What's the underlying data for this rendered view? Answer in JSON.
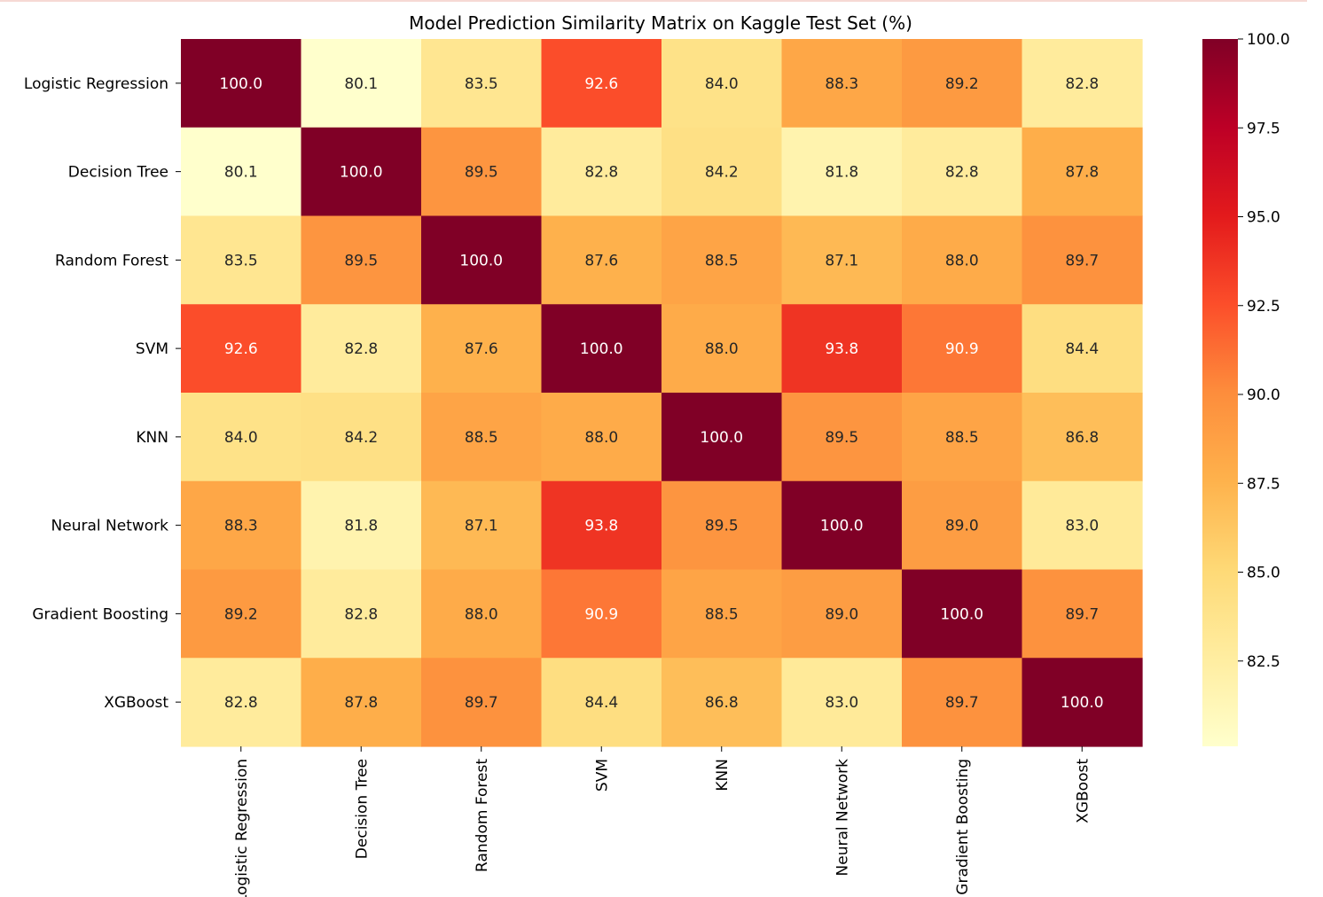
{
  "chart_data": {
    "type": "heatmap",
    "title": "Model Prediction Similarity Matrix on Kaggle Test Set (%)",
    "xlabel": "",
    "ylabel": "",
    "rows": [
      "Logistic Regression",
      "Decision Tree",
      "Random Forest",
      "SVM",
      "KNN",
      "Neural Network",
      "Gradient Boosting",
      "XGBoost"
    ],
    "columns": [
      "Logistic Regression",
      "Decision Tree",
      "Random Forest",
      "SVM",
      "KNN",
      "Neural Network",
      "Gradient Boosting",
      "XGBoost"
    ],
    "values": [
      [
        100.0,
        80.1,
        83.5,
        92.6,
        84.0,
        88.3,
        89.2,
        82.8
      ],
      [
        80.1,
        100.0,
        89.5,
        82.8,
        84.2,
        81.8,
        82.8,
        87.8
      ],
      [
        83.5,
        89.5,
        100.0,
        87.6,
        88.5,
        87.1,
        88.0,
        89.7
      ],
      [
        92.6,
        82.8,
        87.6,
        100.0,
        88.0,
        93.8,
        90.9,
        84.4
      ],
      [
        84.0,
        84.2,
        88.5,
        88.0,
        100.0,
        89.5,
        88.5,
        86.8
      ],
      [
        88.3,
        81.8,
        87.1,
        93.8,
        89.5,
        100.0,
        89.0,
        83.0
      ],
      [
        89.2,
        82.8,
        88.0,
        90.9,
        88.5,
        89.0,
        100.0,
        89.7
      ],
      [
        82.8,
        87.8,
        89.7,
        84.4,
        86.8,
        83.0,
        89.7,
        100.0
      ]
    ],
    "colormap": "YlOrRd",
    "vmin": 80.1,
    "vmax": 100.0,
    "colorbar_ticks": [
      "82.5",
      "85.0",
      "87.5",
      "90.0",
      "92.5",
      "95.0",
      "97.5",
      "100.0"
    ],
    "legend_position": "right"
  }
}
